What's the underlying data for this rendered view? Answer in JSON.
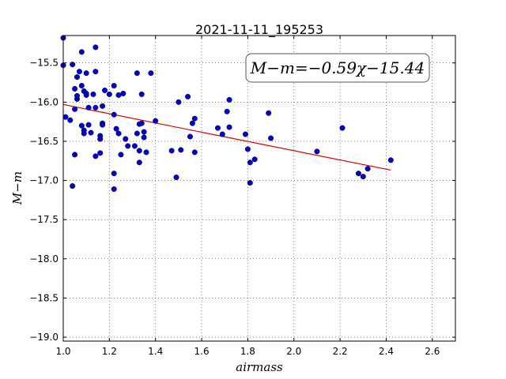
{
  "chart_data": {
    "type": "scatter",
    "title": "2021-11-11_195253",
    "xlabel": "airmass",
    "ylabel": "M−m",
    "xlim": [
      1.0,
      2.7
    ],
    "ylim": [
      -19.05,
      -15.15
    ],
    "xticks": [
      1.0,
      1.2,
      1.4,
      1.6,
      1.8,
      2.0,
      2.2,
      2.4,
      2.6
    ],
    "xtick_labels": [
      "1.0",
      "1.2",
      "1.4",
      "1.6",
      "1.8",
      "2.0",
      "2.2",
      "2.4",
      "2.6"
    ],
    "yticks": [
      -15.5,
      -16.0,
      -16.5,
      -17.0,
      -17.5,
      -18.0,
      -18.5,
      -19.0
    ],
    "ytick_labels": [
      "−15.5",
      "−16.0",
      "−16.5",
      "−17.0",
      "−17.5",
      "−18.0",
      "−18.5",
      "−19.0"
    ],
    "grid": true,
    "annotation": "M−m=−0.59χ−15.44",
    "fit": {
      "slope": -0.59,
      "intercept": -15.44,
      "x_range": [
        1.0,
        2.42
      ],
      "color": "#d40000"
    },
    "point_color": "#0000cc",
    "points": [
      [
        1.0,
        -15.18
      ],
      [
        1.0,
        -15.53
      ],
      [
        1.01,
        -16.19
      ],
      [
        1.03,
        -16.23
      ],
      [
        1.04,
        -15.52
      ],
      [
        1.04,
        -17.07
      ],
      [
        1.05,
        -15.83
      ],
      [
        1.05,
        -16.09
      ],
      [
        1.05,
        -16.67
      ],
      [
        1.06,
        -15.96
      ],
      [
        1.06,
        -15.92
      ],
      [
        1.06,
        -15.68
      ],
      [
        1.07,
        -15.61
      ],
      [
        1.08,
        -15.36
      ],
      [
        1.08,
        -15.79
      ],
      [
        1.08,
        -16.3
      ],
      [
        1.09,
        -16.36
      ],
      [
        1.09,
        -16.4
      ],
      [
        1.09,
        -15.86
      ],
      [
        1.1,
        -15.91
      ],
      [
        1.1,
        -15.89
      ],
      [
        1.1,
        -15.63
      ],
      [
        1.11,
        -16.29
      ],
      [
        1.11,
        -16.07
      ],
      [
        1.12,
        -16.39
      ],
      [
        1.13,
        -15.9
      ],
      [
        1.14,
        -15.3
      ],
      [
        1.14,
        -15.61
      ],
      [
        1.14,
        -16.07
      ],
      [
        1.14,
        -16.69
      ],
      [
        1.16,
        -16.65
      ],
      [
        1.16,
        -16.43
      ],
      [
        1.16,
        -16.47
      ],
      [
        1.17,
        -16.05
      ],
      [
        1.17,
        -16.27
      ],
      [
        1.17,
        -16.29
      ],
      [
        1.18,
        -15.85
      ],
      [
        1.2,
        -15.9
      ],
      [
        1.22,
        -15.79
      ],
      [
        1.22,
        -16.16
      ],
      [
        1.22,
        -16.91
      ],
      [
        1.22,
        -17.11
      ],
      [
        1.23,
        -16.34
      ],
      [
        1.24,
        -15.91
      ],
      [
        1.24,
        -16.4
      ],
      [
        1.25,
        -16.67
      ],
      [
        1.26,
        -15.89
      ],
      [
        1.27,
        -16.47
      ],
      [
        1.28,
        -16.56
      ],
      [
        1.31,
        -16.56
      ],
      [
        1.32,
        -15.63
      ],
      [
        1.32,
        -16.4
      ],
      [
        1.33,
        -16.28
      ],
      [
        1.33,
        -16.62
      ],
      [
        1.33,
        -16.77
      ],
      [
        1.34,
        -15.9
      ],
      [
        1.34,
        -16.27
      ],
      [
        1.35,
        -16.45
      ],
      [
        1.35,
        -16.38
      ],
      [
        1.36,
        -16.64
      ],
      [
        1.38,
        -15.63
      ],
      [
        1.4,
        -16.24
      ],
      [
        1.47,
        -16.62
      ],
      [
        1.49,
        -16.96
      ],
      [
        1.5,
        -16.0
      ],
      [
        1.51,
        -16.61
      ],
      [
        1.54,
        -15.93
      ],
      [
        1.55,
        -16.44
      ],
      [
        1.56,
        -16.27
      ],
      [
        1.57,
        -16.21
      ],
      [
        1.57,
        -16.64
      ],
      [
        1.67,
        -16.33
      ],
      [
        1.69,
        -16.41
      ],
      [
        1.71,
        -16.12
      ],
      [
        1.72,
        -15.97
      ],
      [
        1.72,
        -16.32
      ],
      [
        1.79,
        -16.41
      ],
      [
        1.8,
        -16.6
      ],
      [
        1.81,
        -17.03
      ],
      [
        1.81,
        -16.77
      ],
      [
        1.83,
        -16.73
      ],
      [
        1.89,
        -16.14
      ],
      [
        1.9,
        -16.46
      ],
      [
        2.1,
        -16.63
      ],
      [
        2.21,
        -16.33
      ],
      [
        2.28,
        -16.91
      ],
      [
        2.3,
        -16.95
      ],
      [
        2.32,
        -16.85
      ],
      [
        2.42,
        -16.74
      ]
    ]
  }
}
